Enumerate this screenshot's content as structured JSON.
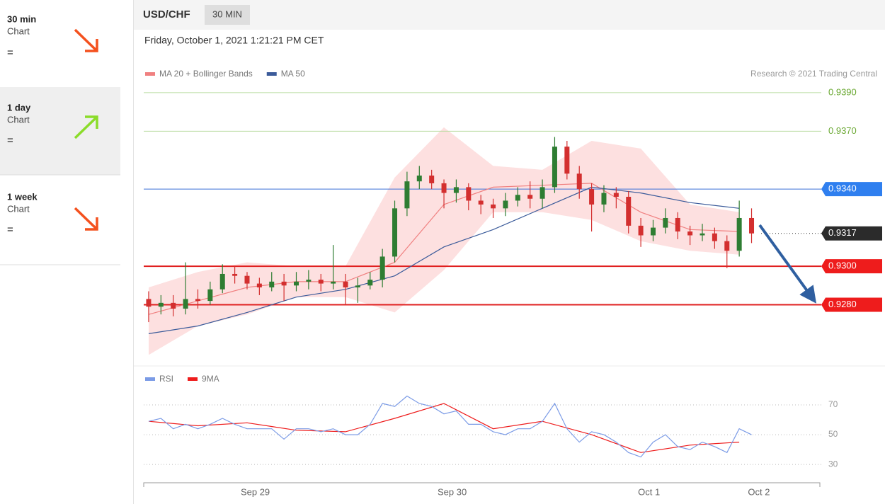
{
  "sidebar": [
    {
      "period": "30 min",
      "label": "Chart",
      "status": "="
    },
    {
      "period": "1 day",
      "label": "Chart",
      "status": "="
    },
    {
      "period": "1 week",
      "label": "Chart",
      "status": "="
    }
  ],
  "header": {
    "symbol": "USD/CHF",
    "interval": "30 MIN",
    "datetime": "Friday, October 1, 2021 1:21:21 PM CET"
  },
  "chart_data": [
    {
      "type": "candlestick",
      "credit": "Research © 2021 Trading Central",
      "up_color": "#2e7d32",
      "down_color": "#d32f2f",
      "xlim": [
        -13.6,
        69
      ],
      "ylim": [
        0.9249,
        0.9394
      ],
      "x": [
        -13,
        -11.5,
        -10,
        -8.5,
        -7,
        -5.5,
        -4,
        -2.5,
        -1,
        0.5,
        2,
        3.5,
        5,
        6.5,
        8,
        9.5,
        11,
        12.5,
        14,
        15.5,
        17,
        18.5,
        20,
        21.5,
        23,
        24.5,
        26,
        27.5,
        29,
        30.5,
        32,
        33.5,
        35,
        36.5,
        38,
        39.5,
        41,
        42.5,
        44,
        45.5,
        47,
        48.5,
        50,
        51.5,
        53,
        54.5,
        56,
        57.5,
        59,
        60.5
      ],
      "open": [
        0.9283,
        0.9279,
        0.9281,
        0.9278,
        0.9283,
        0.9282,
        0.9288,
        0.9296,
        0.9295,
        0.9291,
        0.9289,
        0.9292,
        0.929,
        0.9292,
        0.9293,
        0.9291,
        0.9292,
        0.9289,
        0.929,
        0.9293,
        0.9305,
        0.933,
        0.9344,
        0.9347,
        0.9343,
        0.9338,
        0.9341,
        0.9334,
        0.9332,
        0.933,
        0.9334,
        0.9337,
        0.9335,
        0.9341,
        0.9362,
        0.9348,
        0.934,
        0.9332,
        0.9338,
        0.9336,
        0.9321,
        0.9316,
        0.932,
        0.9325,
        0.9318,
        0.9316,
        0.9317,
        0.9313,
        0.9308,
        0.9325
      ],
      "high": [
        0.9287,
        0.9285,
        0.9285,
        0.9302,
        0.9288,
        0.9292,
        0.9301,
        0.93,
        0.9297,
        0.9294,
        0.9297,
        0.9296,
        0.9297,
        0.9298,
        0.9296,
        0.9311,
        0.9296,
        0.9294,
        0.9297,
        0.9309,
        0.9334,
        0.9349,
        0.9352,
        0.935,
        0.9345,
        0.9345,
        0.9343,
        0.9337,
        0.9335,
        0.9338,
        0.9341,
        0.9344,
        0.9345,
        0.9367,
        0.9365,
        0.9352,
        0.9343,
        0.9342,
        0.9341,
        0.9339,
        0.9325,
        0.9324,
        0.933,
        0.9328,
        0.9321,
        0.9322,
        0.932,
        0.9316,
        0.9334,
        0.933
      ],
      "low": [
        0.9271,
        0.9275,
        0.9274,
        0.9275,
        0.9278,
        0.928,
        0.9286,
        0.9291,
        0.9288,
        0.9285,
        0.9287,
        0.9282,
        0.9287,
        0.9288,
        0.9287,
        0.9288,
        0.928,
        0.9281,
        0.9288,
        0.9289,
        0.9302,
        0.9326,
        0.934,
        0.934,
        0.933,
        0.9333,
        0.9329,
        0.9327,
        0.9325,
        0.9326,
        0.9331,
        0.933,
        0.933,
        0.9338,
        0.9345,
        0.9335,
        0.9318,
        0.9328,
        0.933,
        0.9317,
        0.931,
        0.9313,
        0.9317,
        0.9314,
        0.9311,
        0.9313,
        0.9309,
        0.9299,
        0.9305,
        0.9312
      ],
      "close": [
        0.9279,
        0.9281,
        0.9278,
        0.9283,
        0.9282,
        0.9288,
        0.9296,
        0.9295,
        0.9291,
        0.9289,
        0.9292,
        0.929,
        0.9292,
        0.9293,
        0.9291,
        0.9292,
        0.9289,
        0.929,
        0.9293,
        0.9305,
        0.933,
        0.9344,
        0.9347,
        0.9343,
        0.9338,
        0.9341,
        0.9334,
        0.9332,
        0.933,
        0.9334,
        0.9337,
        0.9335,
        0.9341,
        0.9362,
        0.9348,
        0.934,
        0.9332,
        0.9338,
        0.9336,
        0.9321,
        0.9316,
        0.932,
        0.9325,
        0.9318,
        0.9316,
        0.9317,
        0.9313,
        0.9308,
        0.9325,
        0.9317
      ],
      "series": [
        {
          "name": "MA 20 + Bollinger Bands",
          "color": "#f08080",
          "band_color": "#fde0e0",
          "x": [
            -13,
            -7,
            -1,
            5,
            11,
            17,
            23,
            29,
            35,
            41,
            47,
            53,
            59
          ],
          "values": [
            0.9275,
            0.9282,
            0.9289,
            0.9292,
            0.9292,
            0.9302,
            0.9332,
            0.9341,
            0.9342,
            0.9343,
            0.9328,
            0.9319,
            0.9318
          ],
          "upper": [
            0.9289,
            0.9297,
            0.9302,
            0.93,
            0.93,
            0.9346,
            0.9372,
            0.9352,
            0.935,
            0.9365,
            0.9361,
            0.9332,
            0.9328
          ],
          "lower": [
            0.9254,
            0.9269,
            0.9275,
            0.9284,
            0.9284,
            0.9276,
            0.9298,
            0.9328,
            0.9328,
            0.9324,
            0.9313,
            0.9308,
            0.9306
          ]
        },
        {
          "name": "MA 50",
          "color": "#3b5b9a",
          "x": [
            -13,
            -7,
            -1,
            5,
            11,
            17,
            23,
            29,
            35,
            41,
            47,
            53,
            59
          ],
          "values": [
            0.9265,
            0.9269,
            0.9276,
            0.9284,
            0.9288,
            0.9295,
            0.931,
            0.9319,
            0.933,
            0.9341,
            0.9338,
            0.9333,
            0.933
          ]
        }
      ],
      "levels": [
        {
          "value": 0.939,
          "label": "0.9390",
          "color": "#6aa832",
          "line_color": "#b9dca0",
          "style": "text",
          "line": "solid"
        },
        {
          "value": 0.937,
          "label": "0.9370",
          "color": "#6aa832",
          "line_color": "#b9dca0",
          "style": "text",
          "line": "solid"
        },
        {
          "value": 0.934,
          "label": "0.9340",
          "color": "#2f7fef",
          "line_color": "#3b6fd8",
          "style": "box",
          "line": "solid"
        },
        {
          "value": 0.9317,
          "label": "0.9317",
          "color": "#2b2b2b",
          "line_color": "#333333",
          "style": "box",
          "line": "dotted"
        },
        {
          "value": 0.93,
          "label": "0.9300",
          "color": "#ee1c1c",
          "line_color": "#e02020",
          "style": "box",
          "line": "thick"
        },
        {
          "value": 0.928,
          "label": "0.9280",
          "color": "#ee1c1c",
          "line_color": "#e02020",
          "style": "box",
          "line": "thick"
        }
      ]
    },
    {
      "type": "line",
      "xlim": [
        -13.6,
        69
      ],
      "ylim": [
        21,
        80.5
      ],
      "yticks": [
        70,
        50,
        30
      ],
      "xticks": [
        {
          "value": 0,
          "label": "Sep 29"
        },
        {
          "value": 24,
          "label": "Sep 30"
        },
        {
          "value": 48,
          "label": "Oct 1"
        },
        {
          "value": 61.4,
          "label": "Oct 2"
        }
      ],
      "series": [
        {
          "name": "RSI",
          "color": "#7b9be6",
          "x": [
            -13,
            -11.5,
            -10,
            -8.5,
            -7,
            -5.5,
            -4,
            -2.5,
            -1,
            0.5,
            2,
            3.5,
            5,
            6.5,
            8,
            9.5,
            11,
            12.5,
            14,
            15.5,
            17,
            18.5,
            20,
            21.5,
            23,
            24.5,
            26,
            27.5,
            29,
            30.5,
            32,
            33.5,
            35,
            36.5,
            38,
            39.5,
            41,
            42.5,
            44,
            45.5,
            47,
            48.5,
            50,
            51.5,
            53,
            54.5,
            56,
            57.5,
            59,
            60.5
          ],
          "values": [
            59,
            61,
            54,
            57,
            54,
            57,
            61,
            57,
            54,
            54,
            54,
            47,
            54,
            54,
            52,
            54,
            50,
            50,
            57,
            71,
            69,
            76,
            71,
            69,
            64,
            66,
            57,
            57,
            52,
            50,
            54,
            54,
            59,
            71,
            54,
            45,
            52,
            50,
            45,
            38,
            35,
            45,
            50,
            42,
            40,
            45,
            42,
            38,
            54,
            50
          ]
        },
        {
          "name": "9MA",
          "color": "#ee1c1c",
          "x": [
            -13,
            -7,
            -1,
            5,
            11,
            17,
            23,
            29,
            35,
            41,
            47,
            53,
            59
          ],
          "values": [
            59,
            56,
            58,
            53,
            52,
            61,
            71,
            54,
            59,
            50,
            38,
            43,
            45
          ]
        }
      ]
    }
  ]
}
